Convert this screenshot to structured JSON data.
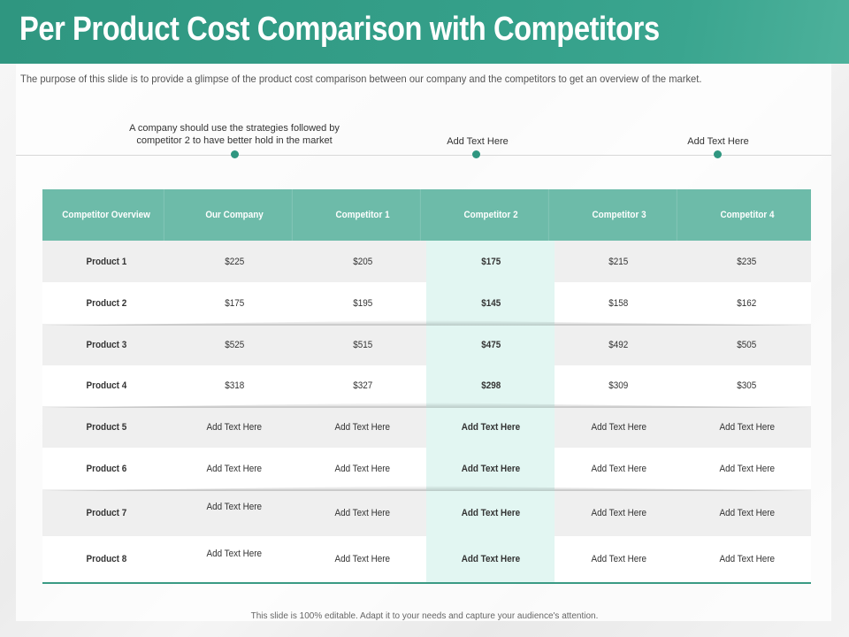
{
  "title": "Per Product Cost Comparison with Competitors",
  "subtitle": "The purpose of this slide is to provide a glimpse  of the product cost comparison between our company and the competitors to get an overview of the market.",
  "notes": [
    "A company should use the strategies followed by competitor  2 to have better hold in the market",
    "Add Text Here",
    "Add Text Here"
  ],
  "table": {
    "headers": [
      "Competitor Overview",
      "Our Company",
      "Competitor 1",
      "Competitor 2",
      "Competitor 3",
      "Competitor 4"
    ],
    "rows": [
      [
        "Product 1",
        "$225",
        "$205",
        "$175",
        "$215",
        "$235"
      ],
      [
        "Product 2",
        "$175",
        "$195",
        "$145",
        "$158",
        "$162"
      ],
      [
        "Product 3",
        "$525",
        "$515",
        "$475",
        "$492",
        "$505"
      ],
      [
        "Product 4",
        "$318",
        "$327",
        "$298",
        "$309",
        "$305"
      ],
      [
        "Product 5",
        "Add Text Here",
        "Add Text Here",
        "Add Text Here",
        "Add Text Here",
        "Add Text Here"
      ],
      [
        "Product 6",
        "Add Text Here",
        "Add Text Here",
        "Add Text Here",
        "Add Text Here",
        "Add Text Here"
      ],
      [
        "Product 7",
        "Add Text Here",
        "Add Text Here",
        "Add Text Here",
        "Add Text Here",
        "Add Text Here"
      ],
      [
        "Product 8",
        "Add Text Here",
        "Add Text Here",
        "Add Text Here",
        "Add Text Here",
        "Add Text Here"
      ]
    ]
  },
  "footer": "This slide is 100% editable.  Adapt it to your needs and capture your audience's attention.",
  "colors": {
    "header": "#35a08a",
    "table_header": "#6dbba9",
    "highlight": "#e2f6f2",
    "dot": "#2f9680"
  }
}
